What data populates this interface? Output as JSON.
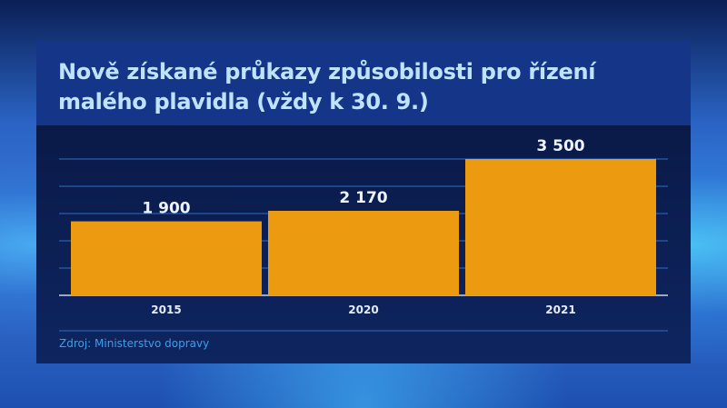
{
  "chart_data": {
    "type": "bar",
    "title": "Nově získané průkazy způsobilosti pro řízení malého plavidla (vždy k 30. 9.)",
    "categories": [
      "2015",
      "2020",
      "2021"
    ],
    "values": [
      1900,
      2170,
      3500
    ],
    "value_labels": [
      "1 900",
      "2 170",
      "3 500"
    ],
    "ylim": [
      0,
      3500
    ],
    "grid": true,
    "xlabel": "",
    "ylabel": "",
    "bar_color": "#ec9b10",
    "source": "Zdroj: Ministerstvo dopravy"
  }
}
